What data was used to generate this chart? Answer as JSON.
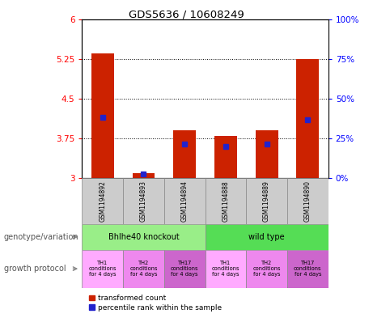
{
  "title": "GDS5636 / 10608249",
  "samples": [
    "GSM1194892",
    "GSM1194893",
    "GSM1194894",
    "GSM1194888",
    "GSM1194889",
    "GSM1194890"
  ],
  "red_values": [
    5.35,
    3.1,
    3.9,
    3.8,
    3.9,
    5.25
  ],
  "blue_values": [
    4.15,
    3.08,
    3.65,
    3.6,
    3.65,
    4.1
  ],
  "y_min": 3.0,
  "y_max": 6.0,
  "y_ticks_left": [
    3,
    3.75,
    4.5,
    5.25,
    6
  ],
  "y_ticks_right": [
    0,
    25,
    50,
    75,
    100
  ],
  "right_labels": [
    "0%",
    "25%",
    "50%",
    "75%",
    "100%"
  ],
  "dotted_lines": [
    3.75,
    4.5,
    5.25
  ],
  "bar_color": "#cc2200",
  "blue_color": "#2222cc",
  "sample_bg": "#cccccc",
  "genotype_groups": [
    {
      "label": "Bhlhe40 knockout",
      "span": [
        0,
        3
      ],
      "color": "#99ee88"
    },
    {
      "label": "wild type",
      "span": [
        3,
        6
      ],
      "color": "#55dd55"
    }
  ],
  "growth_protocol_colors": [
    "#ffaaff",
    "#ee88ee",
    "#cc66cc",
    "#ffaaff",
    "#ee88ee",
    "#cc66cc"
  ],
  "growth_protocol_labels": [
    "TH1\nconditions\nfor 4 days",
    "TH2\nconditions\nfor 4 days",
    "TH17\nconditions\nfor 4 days",
    "TH1\nconditions\nfor 4 days",
    "TH2\nconditions\nfor 4 days",
    "TH17\nconditions\nfor 4 days"
  ],
  "legend_red": "transformed count",
  "legend_blue": "percentile rank within the sample",
  "label_genotype": "genotype/variation",
  "label_growth": "growth protocol"
}
